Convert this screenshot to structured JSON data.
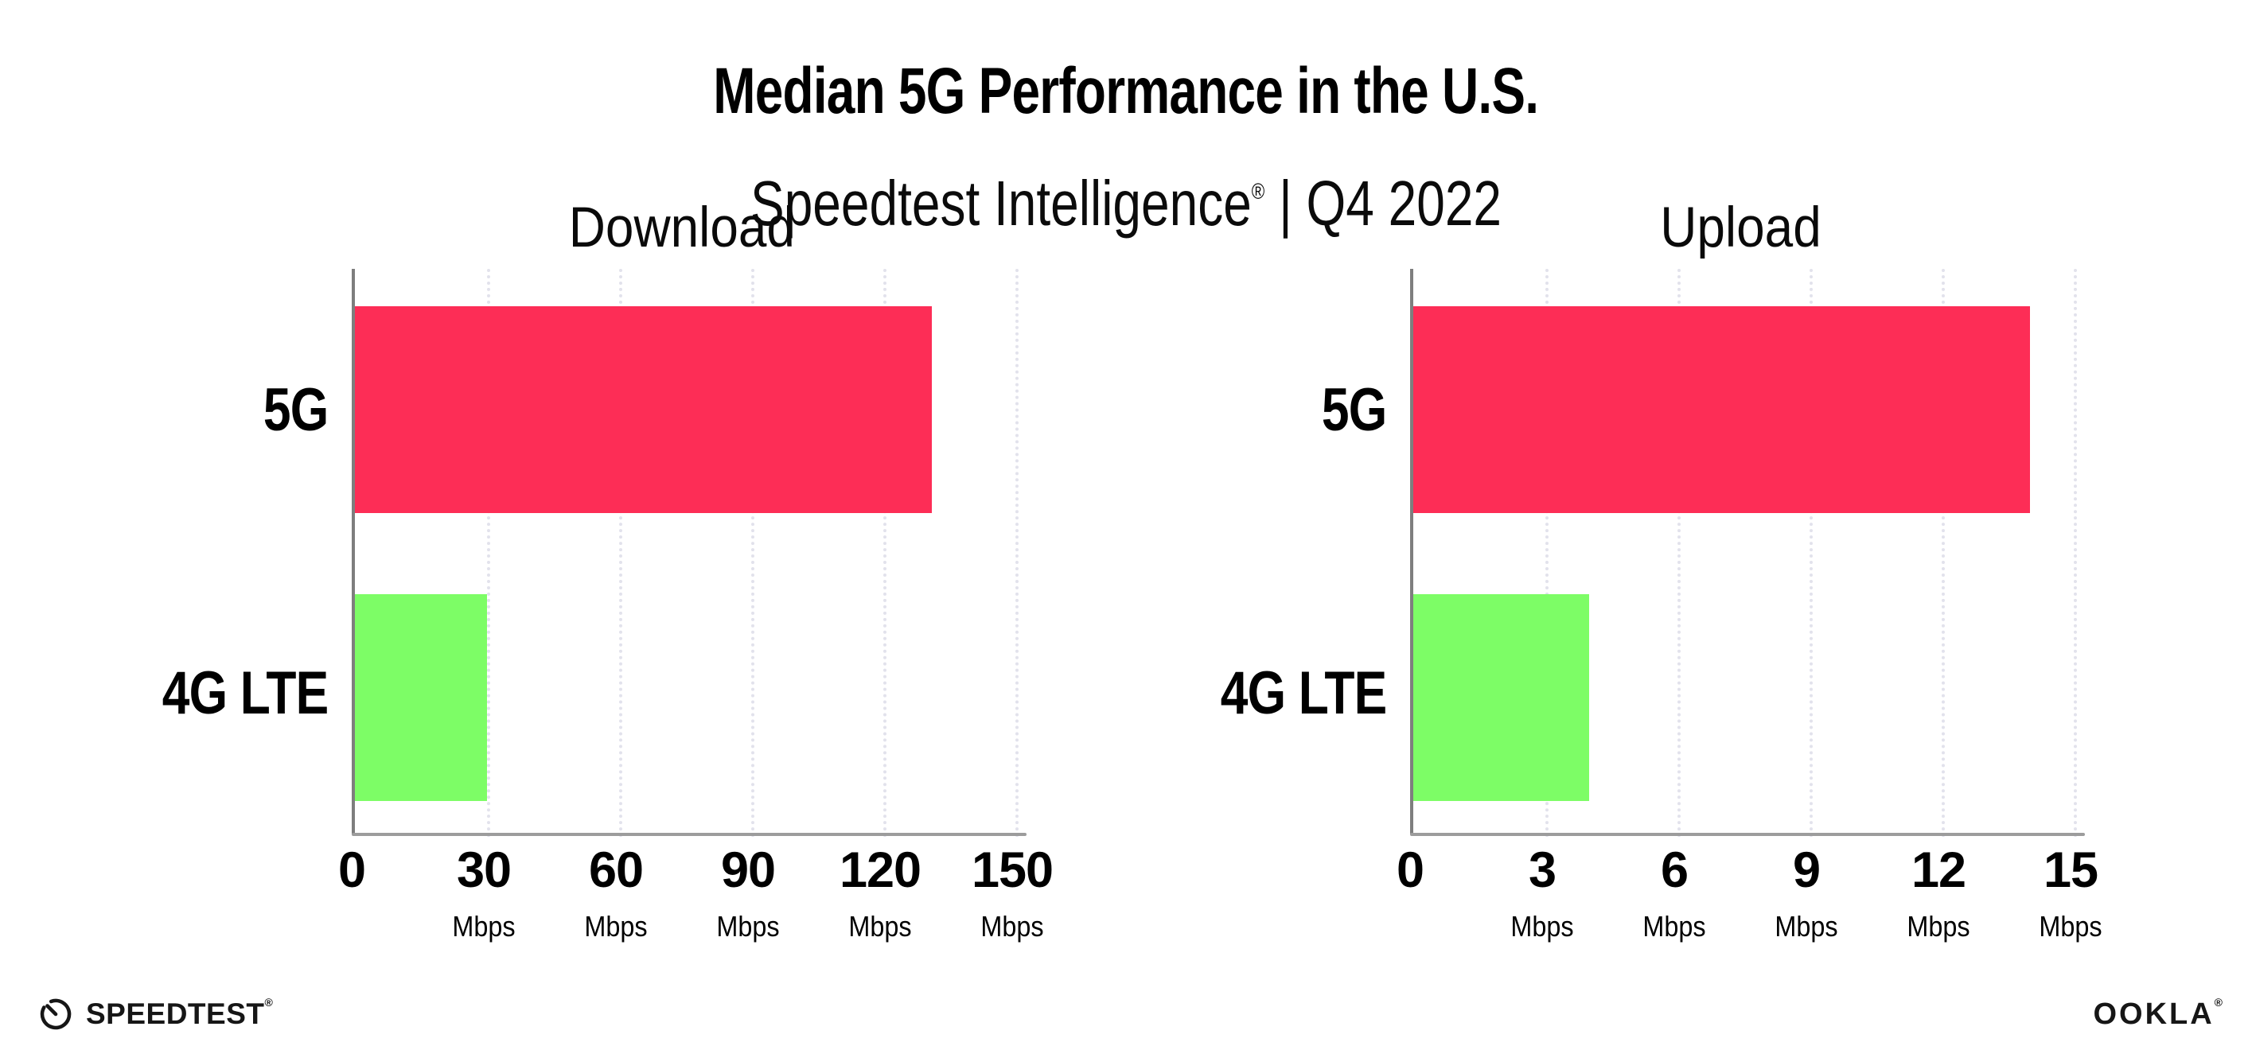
{
  "header": {
    "title": "Median 5G Performance in the U.S.",
    "subtitle": {
      "brand": "Speedtest Intelligence",
      "reg": "®",
      "rest": " | Q4 2022"
    }
  },
  "chart_data": [
    {
      "type": "bar",
      "orientation": "horizontal",
      "title": "Download",
      "categories": [
        "5G",
        "4G LTE"
      ],
      "values": [
        131,
        30
      ],
      "unit": "Mbps",
      "xlabel": "",
      "ylabel": "",
      "xlim": [
        0,
        150
      ],
      "xticks": [
        0,
        30,
        60,
        90,
        120,
        150
      ],
      "bar_colors": [
        "#FD2D56",
        "#7DFD66"
      ],
      "grid": "dotted-vertical",
      "legend": "none"
    },
    {
      "type": "bar",
      "orientation": "horizontal",
      "title": "Upload",
      "categories": [
        "5G",
        "4G LTE"
      ],
      "values": [
        14,
        4
      ],
      "unit": "Mbps",
      "xlabel": "",
      "ylabel": "",
      "xlim": [
        0,
        15
      ],
      "xticks": [
        0,
        3,
        6,
        9,
        12,
        15
      ],
      "bar_colors": [
        "#FD2D56",
        "#7DFD66"
      ],
      "grid": "dotted-vertical",
      "legend": "none"
    }
  ],
  "footer": {
    "speedtest": {
      "label": "SPEEDTEST",
      "mark": "®"
    },
    "ookla": {
      "label": "OOKLA",
      "mark": "®"
    }
  },
  "colors": {
    "accent_pink": "#FD2D56",
    "accent_green": "#7DFD66",
    "axis_line": "#9C9C9C",
    "y_axis_line": "#7E7E7E",
    "gridline": "#E2E2EC",
    "text": "#000000",
    "background": "#FFFFFF"
  }
}
